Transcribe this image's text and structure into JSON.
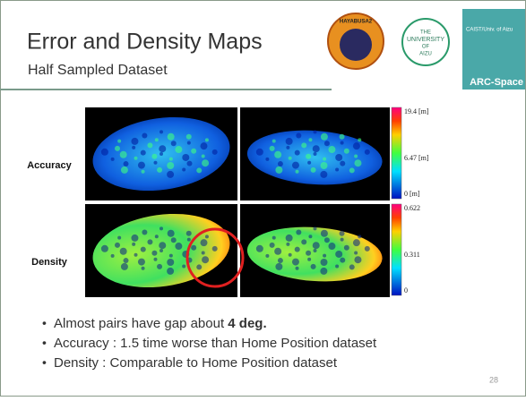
{
  "header": {
    "title": "Error and Density Maps",
    "subtitle": "Half Sampled Dataset"
  },
  "logos": {
    "hayabusa": "HAYABUSA2",
    "university": [
      "THE",
      "UNIVERSITY",
      "OF",
      "AIZU"
    ],
    "caist": "CAIST/Univ. of Aizu",
    "arc": "ARC-Space"
  },
  "rows": [
    {
      "label": "Accuracy",
      "scale": [
        "19.4 [m]",
        "6.47 [m]",
        "0 [m]"
      ]
    },
    {
      "label": "Density",
      "scale": [
        "0.622",
        "0.311",
        "0"
      ]
    }
  ],
  "bullets": [
    {
      "text": "Almost pairs have gap about ",
      "bold": "4 deg."
    },
    {
      "text": "Accuracy : 1.5 time worse than Home Position dataset"
    },
    {
      "text": "Density : Comparable to Home Position dataset"
    }
  ],
  "page_number": "28"
}
